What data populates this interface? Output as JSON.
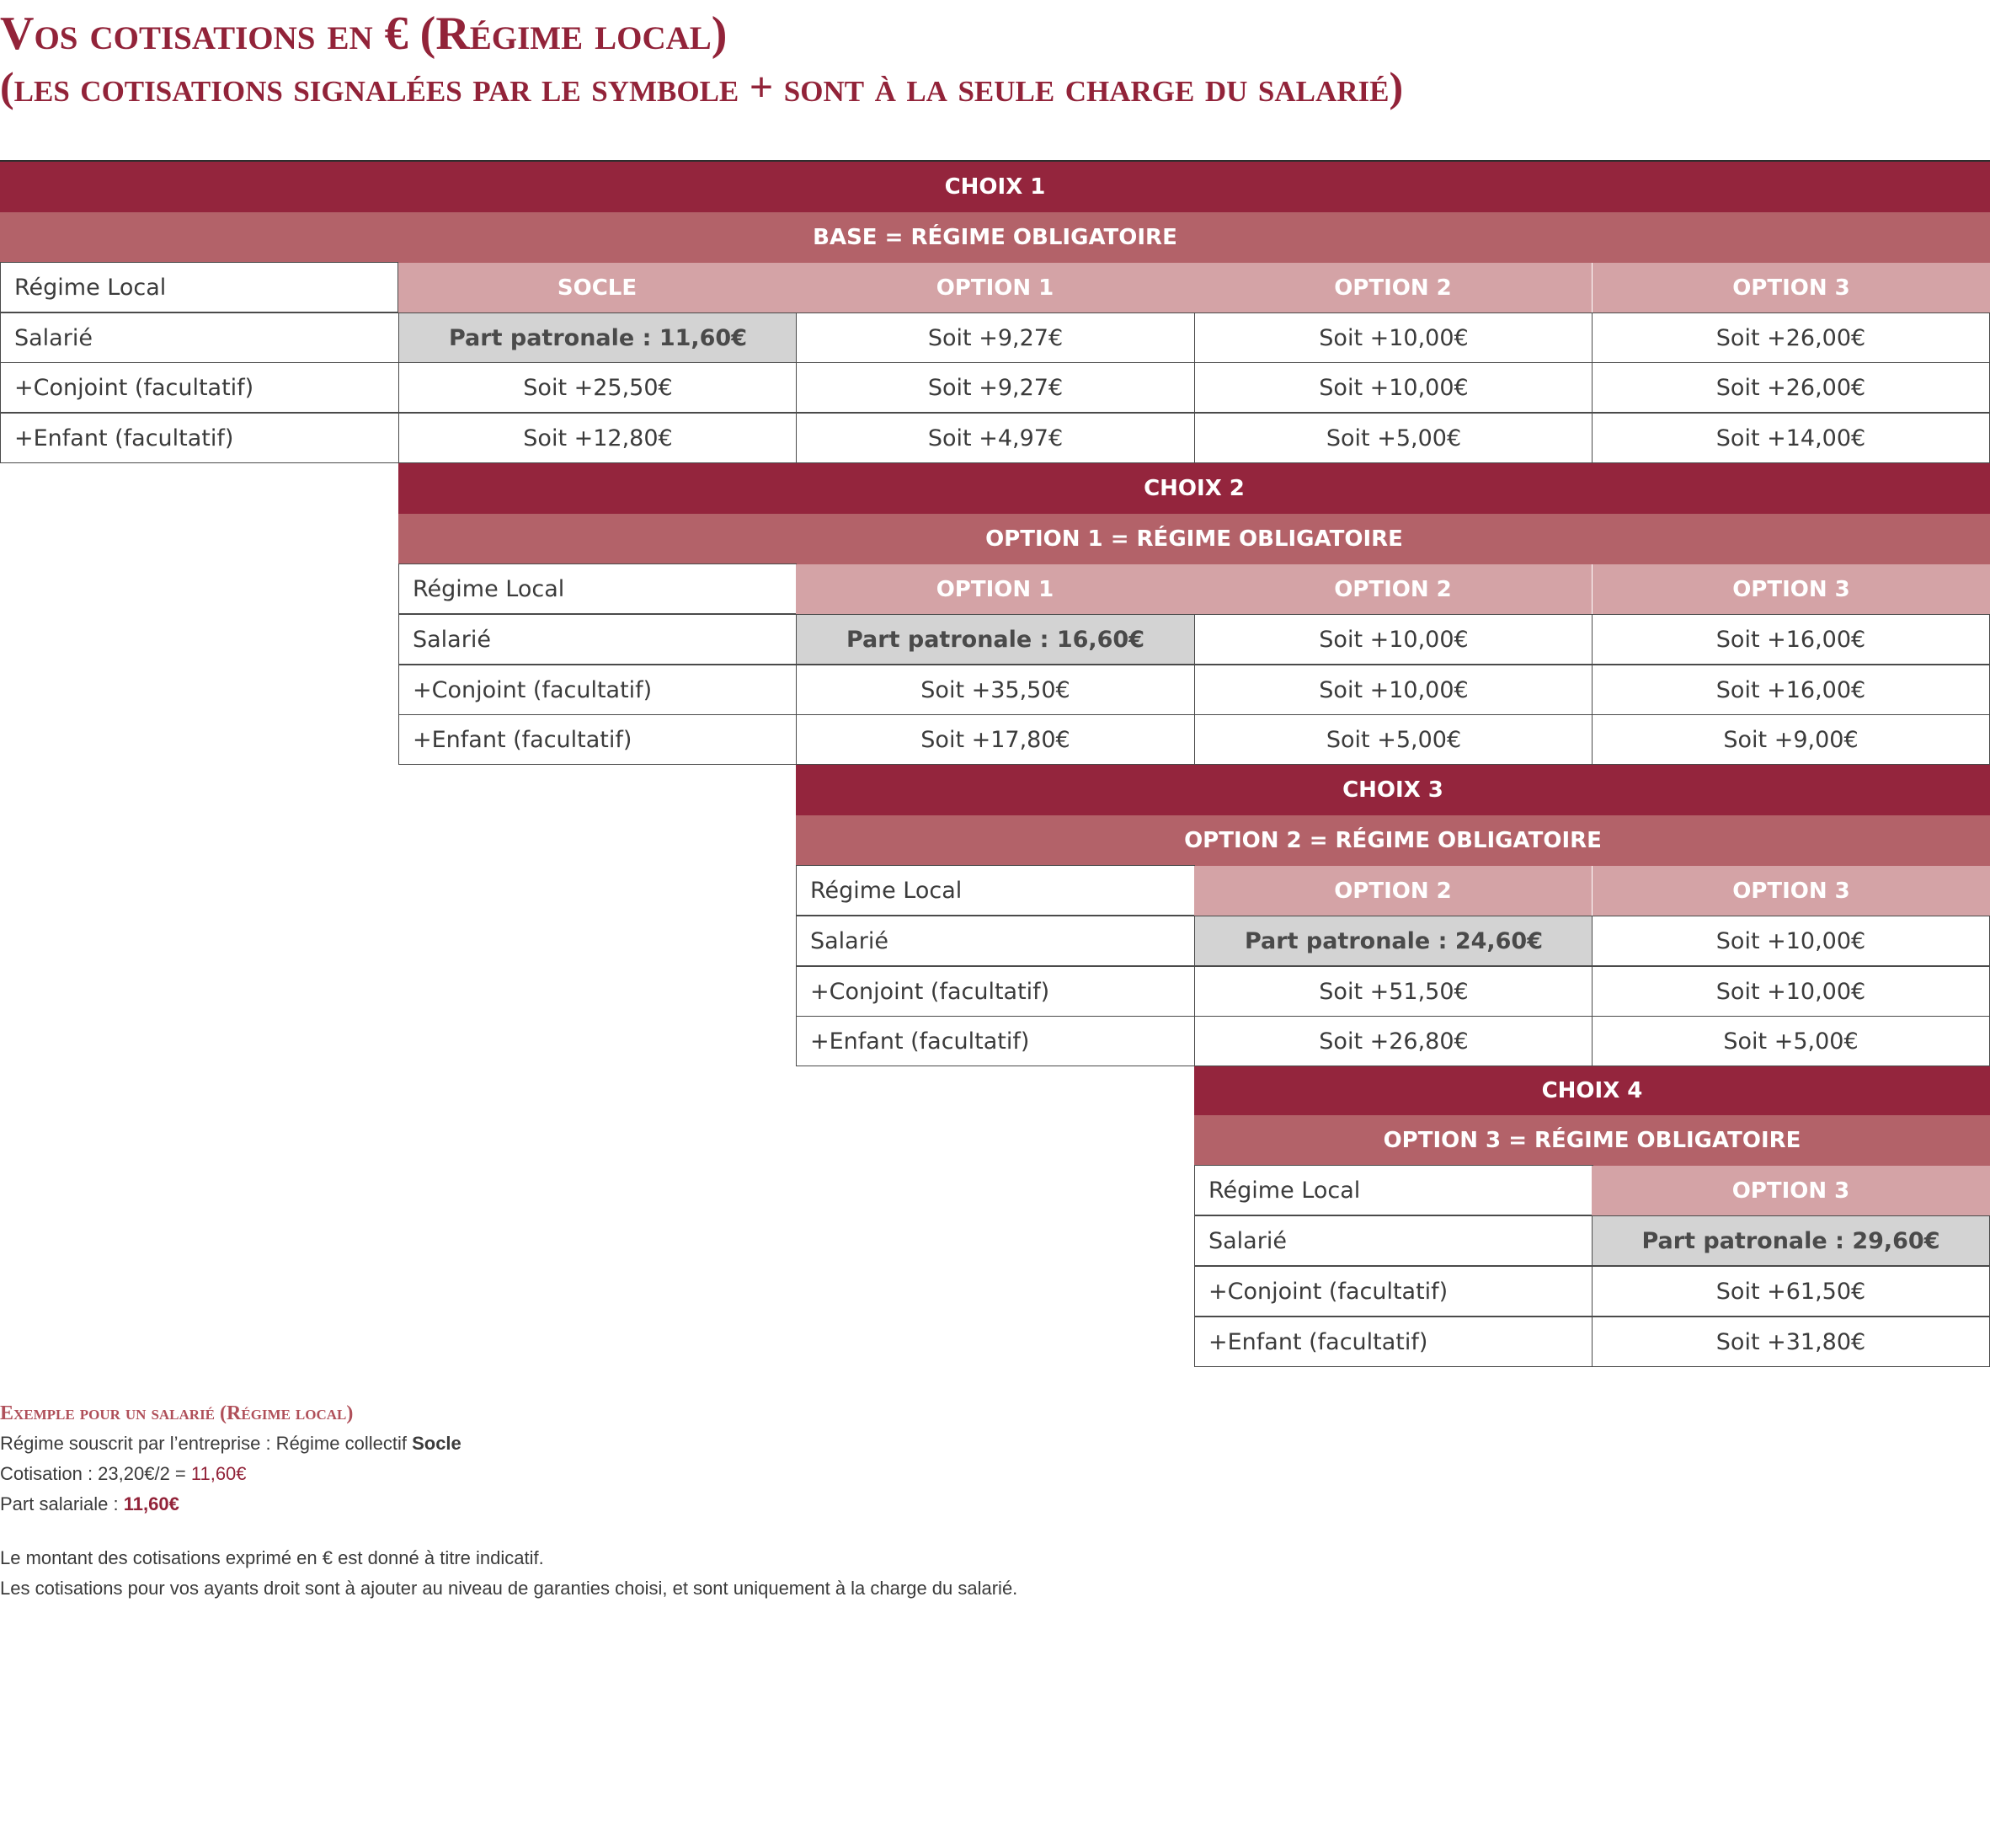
{
  "title": {
    "line1": "Vos cotisations en € (Régime local)",
    "line2": "(les cotisations signalées par le symbole + sont à la seule charge du salarié)"
  },
  "row_labels": {
    "regime_local": "Régime Local",
    "salarie": "Salarié",
    "conjoint": "+Conjoint (facultatif)",
    "enfant": "+Enfant (facultatif)"
  },
  "choix1": {
    "title": "CHOIX 1",
    "base": "BASE = RÉGIME OBLIGATOIRE",
    "columns": [
      "SOCLE",
      "OPTION 1",
      "OPTION 2",
      "OPTION 3"
    ],
    "salarie": [
      "Part patronale : 11,60€",
      "Soit +9,27€",
      "Soit +10,00€",
      "Soit +26,00€"
    ],
    "conjoint": [
      "Soit +25,50€",
      "Soit +9,27€",
      "Soit +10,00€",
      "Soit +26,00€"
    ],
    "enfant": [
      "Soit +12,80€",
      "Soit +4,97€",
      "Soit +5,00€",
      "Soit +14,00€"
    ]
  },
  "choix2": {
    "title": "CHOIX 2",
    "base": "OPTION 1 = RÉGIME OBLIGATOIRE",
    "columns": [
      "OPTION 1",
      "OPTION 2",
      "OPTION 3"
    ],
    "salarie": [
      "Part patronale : 16,60€",
      "Soit +10,00€",
      "Soit +16,00€"
    ],
    "conjoint": [
      "Soit +35,50€",
      "Soit +10,00€",
      "Soit +16,00€"
    ],
    "enfant": [
      "Soit +17,80€",
      "Soit +5,00€",
      "Soit +9,00€"
    ]
  },
  "choix3": {
    "title": "CHOIX 3",
    "base": "OPTION 2 = RÉGIME OBLIGATOIRE",
    "columns": [
      "OPTION 2",
      "OPTION 3"
    ],
    "salarie": [
      "Part patronale : 24,60€",
      "Soit +10,00€"
    ],
    "conjoint": [
      "Soit +51,50€",
      "Soit +10,00€"
    ],
    "enfant": [
      "Soit +26,80€",
      "Soit +5,00€"
    ]
  },
  "choix4": {
    "title": "CHOIX 4",
    "base": "OPTION 3 = RÉGIME OBLIGATOIRE",
    "columns": [
      "OPTION 3"
    ],
    "salarie": [
      "Part patronale : 29,60€"
    ],
    "conjoint": [
      "Soit +61,50€"
    ],
    "enfant": [
      "Soit +31,80€"
    ]
  },
  "example": {
    "title": "Exemple pour un salarié (Régime local)",
    "regime_prefix": "Régime souscrit par l’entreprise : Régime collectif ",
    "regime_value": "Socle",
    "cotisation_prefix": "Cotisation :  23,20€/2 = ",
    "cotisation_value": "11,60€",
    "part_prefix": "Part salariale : ",
    "part_value": "11,60€"
  },
  "footnotes": [
    "Le montant des cotisations exprimé en € est donné à titre indicatif.",
    "Les cotisations pour vos ayants droit sont à ajouter au niveau de garanties choisi, et sont uniquement à la charge du salarié."
  ],
  "colors": {
    "dark_header": "#94253d",
    "mid_header": "#b36269",
    "column_header": "#d4a3a6",
    "employer_share": "#d3d3d3",
    "title_text": "#922339"
  }
}
